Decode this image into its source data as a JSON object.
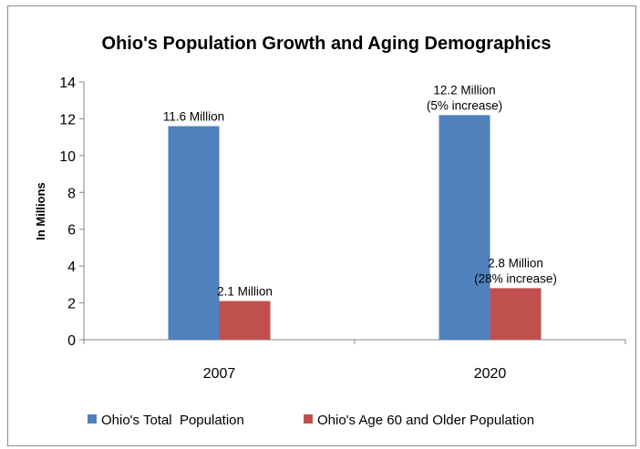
{
  "chart_data": {
    "type": "bar",
    "title": "Ohio's Population Growth and Aging Demographics",
    "xlabel": "",
    "ylabel": "In Millions",
    "ylim": [
      0,
      14
    ],
    "yticks": [
      "0",
      "2",
      "4",
      "6",
      "8",
      "10",
      "12",
      "14"
    ],
    "categories": [
      "2007",
      "2020"
    ],
    "grid": false,
    "legend_position": "bottom",
    "series": [
      {
        "name": "Ohio's Total  Population",
        "color": "#4f81bd",
        "values": [
          11.6,
          12.2
        ],
        "labels": [
          [
            "11.6 Million"
          ],
          [
            "12.2 Million",
            "(5% increase)"
          ]
        ]
      },
      {
        "name": "Ohio's Age 60 and Older Population",
        "color": "#c0504d",
        "values": [
          2.1,
          2.8
        ],
        "labels": [
          [
            "2.1 Million"
          ],
          [
            "2.8 Million",
            "(28% increase)"
          ]
        ]
      }
    ]
  }
}
